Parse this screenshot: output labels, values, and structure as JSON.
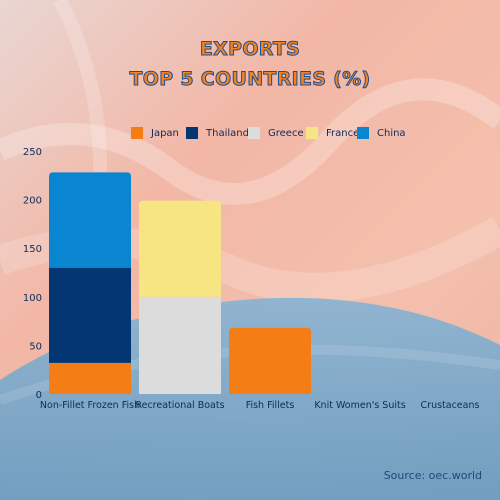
{
  "title_line1": "EXPORTS",
  "title_line2": "TOP 5 COUNTRIES (%)",
  "source": "Source: oec.world",
  "colors": {
    "title_fill": "#f5821f",
    "title_stroke": "#1e4f8f",
    "axis_text": "#0d2b5a",
    "source_text": "#1e4a78",
    "bg_top": "#f0b4a4",
    "bg_wave": "#6aa6cc"
  },
  "chart_data": {
    "type": "bar",
    "stacked": true,
    "categories": [
      "Non-Fillet Frozen Fish",
      "Recreational Boats",
      "Fish Fillets",
      "Knit Women's Suits",
      "Crustaceans"
    ],
    "series": [
      {
        "name": "Japan",
        "color": "#f47d16",
        "values": [
          32,
          0,
          68,
          0,
          0
        ]
      },
      {
        "name": "Thailand",
        "color": "#043673",
        "values": [
          98,
          0,
          0,
          0,
          0
        ]
      },
      {
        "name": "Greece",
        "color": "#dcdcdc",
        "values": [
          0,
          100,
          0,
          0,
          0
        ]
      },
      {
        "name": "France",
        "color": "#f6e582",
        "values": [
          0,
          99,
          0,
          0,
          0
        ]
      },
      {
        "name": "China",
        "color": "#0a86d0",
        "values": [
          98,
          0,
          0,
          0,
          0
        ]
      }
    ],
    "ylim": [
      0,
      250
    ],
    "yticks": [
      0,
      50,
      100,
      150,
      200,
      250
    ],
    "grid": false,
    "legend_position": "top"
  }
}
